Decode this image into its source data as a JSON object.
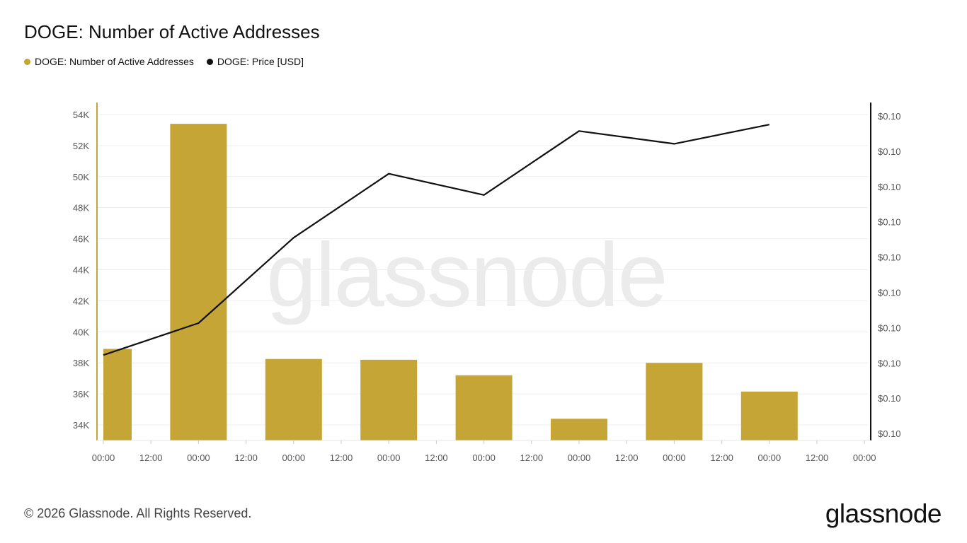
{
  "page": {
    "title": "DOGE: Number of Active Addresses",
    "footer_copyright": "© 2026 Glassnode. All Rights Reserved.",
    "footer_logo": "glassnode",
    "watermark": "glassnode"
  },
  "legend": [
    {
      "label": "DOGE: Number of Active Addresses",
      "color": "#C4A535"
    },
    {
      "label": "DOGE: Price [USD]",
      "color": "#111111"
    }
  ],
  "chart_data": {
    "type": "bar",
    "x_ticks": [
      "00:00",
      "12:00",
      "00:00",
      "12:00",
      "00:00",
      "12:00",
      "00:00",
      "12:00",
      "00:00",
      "12:00",
      "00:00",
      "12:00",
      "00:00",
      "12:00",
      "00:00",
      "12:00",
      "00:00"
    ],
    "y_left_ticks": [
      "34K",
      "36K",
      "38K",
      "40K",
      "42K",
      "44K",
      "46K",
      "48K",
      "50K",
      "52K",
      "54K"
    ],
    "y_left_range": [
      33000,
      55000
    ],
    "y_right_ticks": [
      "$0.10",
      "$0.10",
      "$0.10",
      "$0.10",
      "$0.10",
      "$0.10",
      "$0.10",
      "$0.10",
      "$0.10",
      "$0.10"
    ],
    "series": [
      {
        "name": "DOGE: Number of Active Addresses",
        "type": "bar",
        "color": "#C4A535",
        "x_index": [
          0,
          1,
          2,
          3,
          4,
          5,
          6,
          7
        ],
        "values": [
          38900,
          53400,
          38250,
          38200,
          37200,
          34400,
          38000,
          36150
        ]
      },
      {
        "name": "DOGE: Price [USD]",
        "type": "line",
        "color": "#111111",
        "x_index": [
          0,
          1,
          2,
          3,
          4,
          5,
          6,
          7
        ],
        "values": [
          0.0995,
          0.09965,
          0.10005,
          0.10035,
          0.10025,
          0.10055,
          0.10049,
          0.10058
        ]
      }
    ],
    "y_right_range": [
      0.0991,
      0.1007
    ],
    "grid": true,
    "legend_position": "top-left"
  }
}
